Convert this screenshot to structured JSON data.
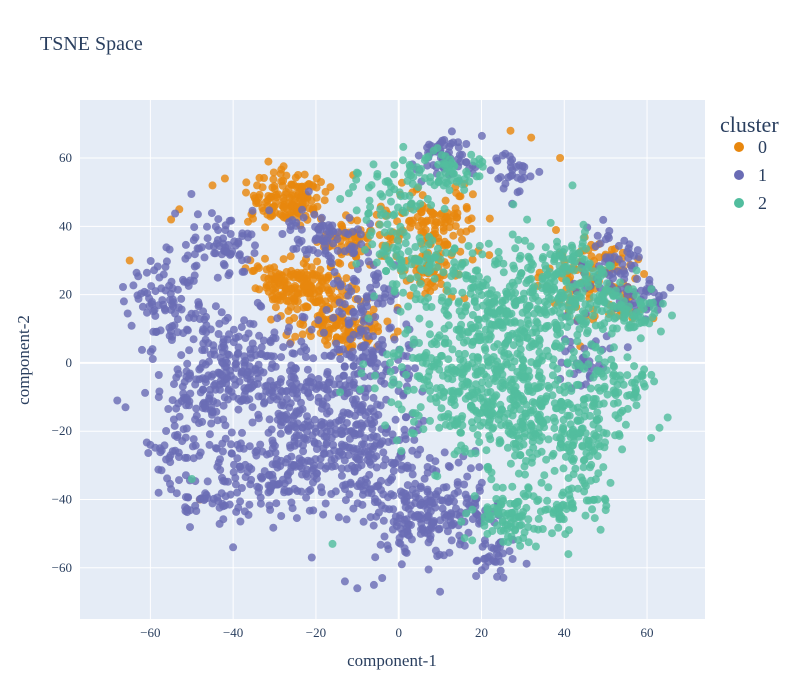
{
  "chart_data": {
    "type": "scatter",
    "title": "TSNE Space",
    "xlabel": "component-1",
    "ylabel": "component-2",
    "xlim": [
      -77,
      74
    ],
    "ylim": [
      -75,
      77
    ],
    "xticks": [
      -60,
      -40,
      -20,
      0,
      20,
      40,
      60
    ],
    "yticks": [
      -60,
      -40,
      -20,
      0,
      20,
      40,
      60
    ],
    "grid": true,
    "legend": {
      "title": "cluster",
      "position": "top-right"
    },
    "series": [
      {
        "name": "0",
        "color": "#e8870e",
        "clusters": [
          {
            "center": [
              -27,
              48
            ],
            "spread": [
              5,
              4
            ],
            "n": 150
          },
          {
            "center": [
              -24,
              23
            ],
            "spread": [
              6,
              4
            ],
            "n": 170
          },
          {
            "center": [
              -15,
              12
            ],
            "spread": [
              6,
              4
            ],
            "n": 120
          },
          {
            "center": [
              -12,
              35
            ],
            "spread": [
              4,
              3
            ],
            "n": 60
          },
          {
            "center": [
              8,
              40
            ],
            "spread": [
              7,
              5
            ],
            "n": 130
          },
          {
            "center": [
              8,
              25
            ],
            "spread": [
              5,
              4
            ],
            "n": 50
          },
          {
            "center": [
              47,
              28
            ],
            "spread": [
              5,
              4
            ],
            "n": 60
          },
          {
            "center": [
              55,
              18
            ],
            "spread": [
              3,
              3
            ],
            "n": 25
          },
          {
            "center": [
              44,
              22
            ],
            "spread": [
              5,
              6
            ],
            "n": 35
          }
        ],
        "outliers": [
          [
            -65,
            30
          ],
          [
            -55,
            42
          ],
          [
            -53,
            45
          ],
          [
            -45,
            52
          ],
          [
            -42,
            54
          ],
          [
            27,
            68
          ],
          [
            32,
            66
          ],
          [
            39,
            60
          ],
          [
            -48,
            -40
          ],
          [
            -11,
            55
          ]
        ]
      },
      {
        "name": "1",
        "color": "#6a6cb5",
        "clusters": [
          {
            "center": [
              -55,
              18
            ],
            "spread": [
              5,
              6
            ],
            "n": 90
          },
          {
            "center": [
              -43,
              35
            ],
            "spread": [
              5,
              5
            ],
            "n": 70
          },
          {
            "center": [
              -48,
              -8
            ],
            "spread": [
              6,
              8
            ],
            "n": 110
          },
          {
            "center": [
              -36,
              0
            ],
            "spread": [
              7,
              8
            ],
            "n": 130
          },
          {
            "center": [
              -22,
              -12
            ],
            "spread": [
              10,
              9
            ],
            "n": 240
          },
          {
            "center": [
              -30,
              -32
            ],
            "spread": [
              8,
              6
            ],
            "n": 150
          },
          {
            "center": [
              -8,
              -28
            ],
            "spread": [
              8,
              9
            ],
            "n": 200
          },
          {
            "center": [
              -5,
              2
            ],
            "spread": [
              5,
              7
            ],
            "n": 80
          },
          {
            "center": [
              -18,
              38
            ],
            "spread": [
              5,
              5
            ],
            "n": 70
          },
          {
            "center": [
              -8,
              22
            ],
            "spread": [
              5,
              6
            ],
            "n": 60
          },
          {
            "center": [
              5,
              -48
            ],
            "spread": [
              6,
              5
            ],
            "n": 100
          },
          {
            "center": [
              12,
              -40
            ],
            "spread": [
              6,
              6
            ],
            "n": 100
          },
          {
            "center": [
              24,
              -56
            ],
            "spread": [
              3,
              3
            ],
            "n": 35
          },
          {
            "center": [
              12,
              60
            ],
            "spread": [
              4,
              3
            ],
            "n": 60
          },
          {
            "center": [
              28,
              55
            ],
            "spread": [
              3,
              3
            ],
            "n": 30
          },
          {
            "center": [
              52,
              28
            ],
            "spread": [
              4,
              5
            ],
            "n": 60
          },
          {
            "center": [
              60,
              20
            ],
            "spread": [
              3,
              3
            ],
            "n": 30
          },
          {
            "center": [
              45,
              1
            ],
            "spread": [
              4,
              5
            ],
            "n": 40
          },
          {
            "center": [
              -55,
              -28
            ],
            "spread": [
              4,
              4
            ],
            "n": 30
          },
          {
            "center": [
              -47,
              -42
            ],
            "spread": [
              4,
              3
            ],
            "n": 30
          }
        ],
        "outliers": [
          [
            -68,
            -11
          ],
          [
            -66,
            -13
          ],
          [
            -60,
            -24
          ],
          [
            -58,
            -38
          ],
          [
            -55,
            -37
          ],
          [
            -40,
            -54
          ],
          [
            -13,
            -64
          ],
          [
            -10,
            -66
          ],
          [
            -6,
            -65
          ],
          [
            -4,
            -63
          ],
          [
            10,
            -67
          ],
          [
            -21,
            -57
          ]
        ]
      },
      {
        "name": "2",
        "color": "#52bd9e",
        "clusters": [
          {
            "center": [
              20,
              -2
            ],
            "spread": [
              12,
              12
            ],
            "n": 450
          },
          {
            "center": [
              30,
              20
            ],
            "spread": [
              9,
              9
            ],
            "n": 250
          },
          {
            "center": [
              35,
              -15
            ],
            "spread": [
              10,
              8
            ],
            "n": 220
          },
          {
            "center": [
              5,
              30
            ],
            "spread": [
              6,
              5
            ],
            "n": 90
          },
          {
            "center": [
              -3,
              48
            ],
            "spread": [
              5,
              5
            ],
            "n": 60
          },
          {
            "center": [
              12,
              57
            ],
            "spread": [
              6,
              3
            ],
            "n": 60
          },
          {
            "center": [
              45,
              20
            ],
            "spread": [
              6,
              5
            ],
            "n": 90
          },
          {
            "center": [
              56,
              14
            ],
            "spread": [
              4,
              3
            ],
            "n": 45
          },
          {
            "center": [
              52,
              -5
            ],
            "spread": [
              5,
              5
            ],
            "n": 60
          },
          {
            "center": [
              27,
              -45
            ],
            "spread": [
              6,
              5
            ],
            "n": 100
          },
          {
            "center": [
              42,
              -40
            ],
            "spread": [
              4,
              4
            ],
            "n": 50
          },
          {
            "center": [
              45,
              -25
            ],
            "spread": [
              4,
              4
            ],
            "n": 40
          },
          {
            "center": [
              40,
              30
            ],
            "spread": [
              4,
              4
            ],
            "n": 40
          }
        ],
        "outliers": [
          [
            61,
            -22
          ],
          [
            63,
            -19
          ],
          [
            65,
            -16
          ],
          [
            41,
            -56
          ],
          [
            42,
            52
          ],
          [
            -16,
            -53
          ],
          [
            -50,
            -34
          ]
        ]
      }
    ]
  }
}
